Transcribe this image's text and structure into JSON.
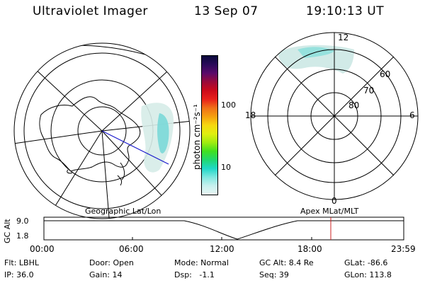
{
  "header": {
    "instrument": "Ultraviolet Imager",
    "date": "13 Sep 07",
    "time": "19:10:13 UT"
  },
  "colorbar": {
    "unit_label": "photon cm⁻²s⁻¹",
    "tick_labels": [
      "100",
      "10"
    ],
    "colors": [
      "#0a0a3a",
      "#2a0a5a",
      "#5a0a6a",
      "#9a0a3a",
      "#cc0a1a",
      "#e8201a",
      "#f07018",
      "#f5a010",
      "#f7d810",
      "#e0f010",
      "#a0ec10",
      "#40e020",
      "#20d870",
      "#20d8c8",
      "#80e8e0",
      "#c8f0ee",
      "#e8f6f4"
    ]
  },
  "geo_map": {
    "label": "Geographic Lat/Lon"
  },
  "polar_plot": {
    "label": "Apex MLat/MLT",
    "mlt_labels": {
      "top": "12",
      "left": "18",
      "right": "6",
      "bottom": "0"
    },
    "lat_labels": [
      "60",
      "70",
      "80"
    ]
  },
  "altitude_panel": {
    "ylabel": "GC Alt",
    "ytick_labels": [
      "9.0",
      "1.8"
    ],
    "xtick_labels": [
      "00:00",
      "06:00",
      "12:00",
      "18:00",
      "23:59"
    ]
  },
  "info": {
    "col1": [
      "Flt: LBHL",
      "IP: 36.0"
    ],
    "col2": [
      "Door: Open",
      "Gain: 14"
    ],
    "col3": [
      "Mode: Normal",
      "Dsp:   -1.1"
    ],
    "col4": [
      "GC Alt: 8.4 Re",
      "Seq: 39"
    ],
    "col5": [
      "GLat: -86.6",
      "GLon: 113.8"
    ]
  },
  "accent_colors": {
    "marker": "#cc2222",
    "track": "#1a1acc",
    "aurora": "#7ad8d8"
  }
}
